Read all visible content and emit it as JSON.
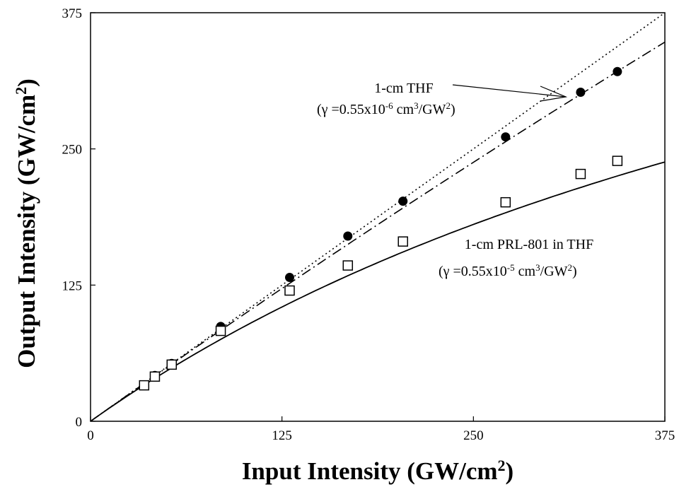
{
  "chart_data": {
    "type": "scatter",
    "title": "",
    "xlabel": {
      "text": "Input Intensity (GW/cm",
      "sup": "2",
      "close": ")"
    },
    "ylabel": {
      "text": "Output Intensity (GW/cm",
      "sup": "2",
      "close": ")"
    },
    "xlim": [
      0,
      375
    ],
    "ylim": [
      0,
      375
    ],
    "xticks": [
      0,
      125,
      250,
      375
    ],
    "yticks": [
      0,
      125,
      250,
      375
    ],
    "grid": false,
    "series": [
      {
        "marker": "filled-circle",
        "points": [
          [
            35,
            33
          ],
          [
            42,
            42
          ],
          [
            53,
            53
          ],
          [
            85,
            87
          ],
          [
            130,
            132
          ],
          [
            168,
            170
          ],
          [
            204,
            202
          ],
          [
            271,
            261
          ],
          [
            320,
            302
          ],
          [
            344,
            321
          ]
        ]
      },
      {
        "marker": "open-square",
        "points": [
          [
            35,
            33
          ],
          [
            42,
            41
          ],
          [
            53,
            52
          ],
          [
            85,
            83
          ],
          [
            130,
            120
          ],
          [
            168,
            143
          ],
          [
            204,
            165
          ],
          [
            271,
            201
          ],
          [
            320,
            227
          ],
          [
            344,
            239
          ]
        ]
      }
    ],
    "curves": [
      {
        "style": "dotted",
        "description": "linear",
        "y_at": {
          "0": 0,
          "375": 375
        }
      },
      {
        "style": "dash-dot",
        "y_at": {
          "0": 0,
          "375": 348
        }
      },
      {
        "style": "solid",
        "y_at": {
          "0": 0,
          "375": 238
        }
      }
    ],
    "annotations": [
      {
        "line1": "1-cm THF",
        "line2": {
          "pre": "(γ =0.55x10",
          "sup1": "-6",
          "mid": " cm",
          "sup2": "3",
          "post": "/GW",
          "sup3": "2",
          "close": ")"
        },
        "arrow": true
      },
      {
        "line1": "1-cm PRL-801 in THF",
        "line2": {
          "pre": "(γ =0.55x10",
          "sup1": "-5",
          "mid": " cm",
          "sup2": "3",
          "post": "/GW",
          "sup3": "2",
          "close": ")"
        },
        "arrow": false
      }
    ]
  }
}
